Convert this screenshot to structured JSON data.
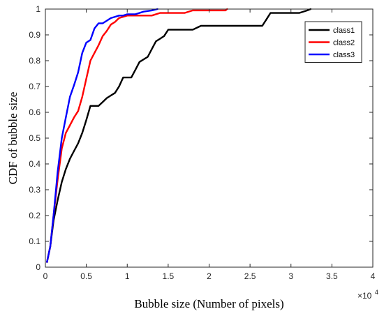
{
  "chart_data": {
    "type": "line",
    "title": "",
    "xlabel": "Bubble size (Number of pixels)",
    "ylabel": "CDF of bubble size",
    "x_multiplier_label": {
      "base": "×10",
      "exponent": "4"
    },
    "xlim": [
      0,
      4
    ],
    "ylim": [
      0,
      1
    ],
    "x_ticks": [
      0,
      0.5,
      1,
      1.5,
      2,
      2.5,
      3,
      3.5,
      4
    ],
    "x_tick_labels": [
      "0",
      "0.5",
      "1",
      "1.5",
      "2",
      "2.5",
      "3",
      "3.5",
      "4"
    ],
    "y_ticks": [
      0,
      0.1,
      0.2,
      0.3,
      0.4,
      0.5,
      0.6,
      0.7,
      0.8,
      0.9,
      1
    ],
    "y_tick_labels": [
      "0",
      "0.1",
      "0.2",
      "0.3",
      "0.4",
      "0.5",
      "0.6",
      "0.7",
      "0.8",
      "0.9",
      "1"
    ],
    "grid": false,
    "legend_position": "top-right",
    "series": [
      {
        "name": "class1",
        "color": "#000000",
        "x": [
          0.02,
          0.06,
          0.1,
          0.15,
          0.2,
          0.25,
          0.3,
          0.35,
          0.4,
          0.45,
          0.5,
          0.55,
          0.6,
          0.65,
          0.7,
          0.75,
          0.8,
          0.85,
          0.9,
          0.95,
          1.0,
          1.05,
          1.1,
          1.15,
          1.2,
          1.25,
          1.3,
          1.35,
          1.4,
          1.45,
          1.5,
          1.6,
          1.7,
          1.8,
          1.9,
          2.0,
          2.1,
          2.2,
          2.3,
          2.4,
          2.5,
          2.6,
          2.65,
          2.7,
          2.75,
          2.8,
          2.9,
          3.0,
          3.1,
          3.2,
          3.24
        ],
        "y": [
          0.02,
          0.08,
          0.18,
          0.26,
          0.33,
          0.38,
          0.42,
          0.45,
          0.48,
          0.52,
          0.57,
          0.625,
          0.625,
          0.625,
          0.64,
          0.655,
          0.665,
          0.675,
          0.7,
          0.735,
          0.735,
          0.735,
          0.765,
          0.795,
          0.805,
          0.815,
          0.845,
          0.875,
          0.885,
          0.895,
          0.92,
          0.92,
          0.92,
          0.92,
          0.935,
          0.935,
          0.935,
          0.935,
          0.935,
          0.935,
          0.935,
          0.935,
          0.935,
          0.96,
          0.985,
          0.985,
          0.985,
          0.985,
          0.985,
          0.995,
          1.0
        ]
      },
      {
        "name": "class2",
        "color": "#ff0000",
        "x": [
          0.02,
          0.06,
          0.1,
          0.15,
          0.2,
          0.25,
          0.3,
          0.35,
          0.4,
          0.45,
          0.5,
          0.55,
          0.6,
          0.65,
          0.7,
          0.75,
          0.8,
          0.85,
          0.9,
          1.0,
          1.1,
          1.2,
          1.3,
          1.4,
          1.5,
          1.6,
          1.7,
          1.8,
          1.9,
          2.0,
          2.1,
          2.2,
          2.22
        ],
        "y": [
          0.02,
          0.08,
          0.2,
          0.34,
          0.46,
          0.52,
          0.55,
          0.58,
          0.605,
          0.66,
          0.73,
          0.8,
          0.83,
          0.86,
          0.895,
          0.915,
          0.94,
          0.95,
          0.965,
          0.975,
          0.975,
          0.975,
          0.975,
          0.985,
          0.985,
          0.985,
          0.985,
          0.995,
          0.995,
          0.995,
          0.995,
          0.995,
          1.0
        ]
      },
      {
        "name": "class3",
        "color": "#0000ff",
        "x": [
          0.02,
          0.06,
          0.1,
          0.15,
          0.2,
          0.25,
          0.3,
          0.35,
          0.4,
          0.45,
          0.5,
          0.55,
          0.6,
          0.65,
          0.7,
          0.75,
          0.8,
          0.85,
          0.9,
          0.95,
          1.0,
          1.1,
          1.2,
          1.3,
          1.37
        ],
        "y": [
          0.02,
          0.08,
          0.2,
          0.37,
          0.5,
          0.58,
          0.66,
          0.705,
          0.755,
          0.83,
          0.87,
          0.88,
          0.925,
          0.945,
          0.945,
          0.955,
          0.965,
          0.97,
          0.975,
          0.975,
          0.98,
          0.98,
          0.99,
          0.995,
          1.0
        ]
      }
    ]
  }
}
